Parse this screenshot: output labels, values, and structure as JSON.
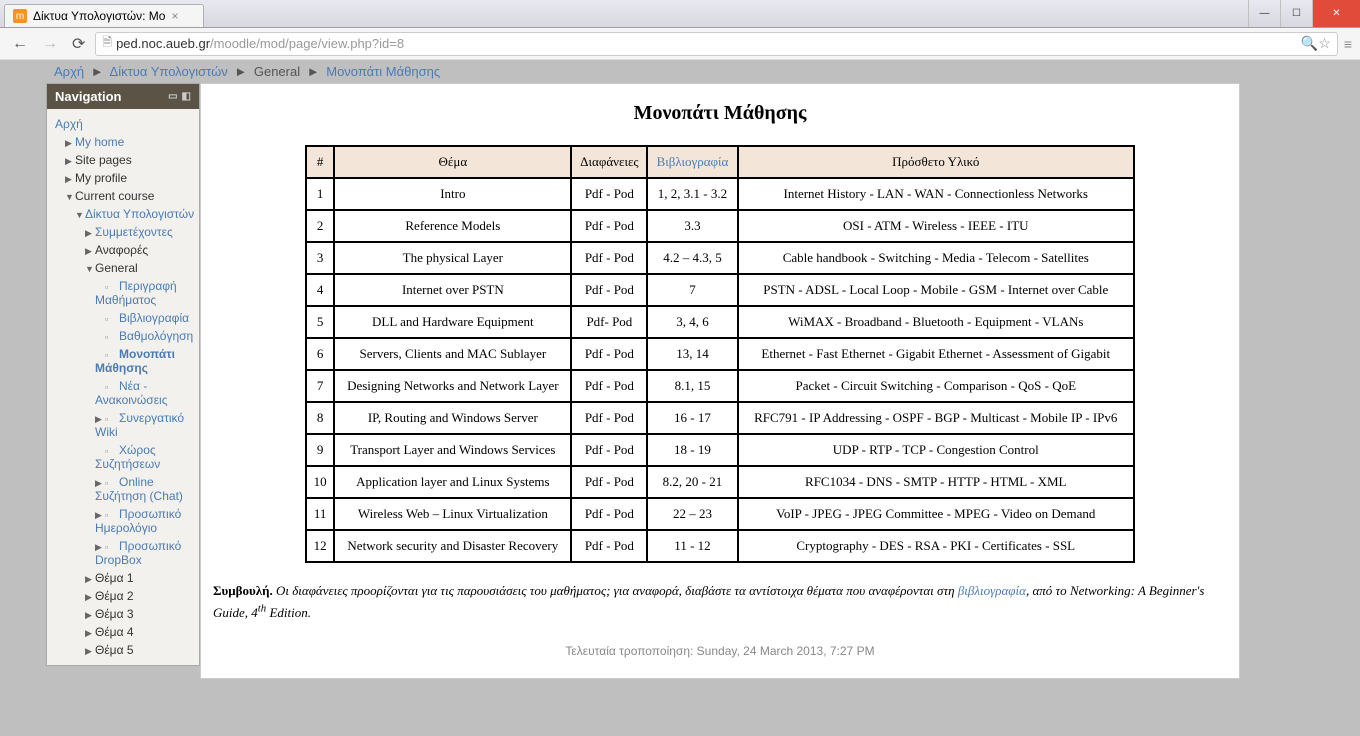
{
  "browser": {
    "tab_title": "Δίκτυα Υπολογιστών: Μο",
    "url_domain": "ped.noc.aueb.gr",
    "url_path": "/moodle/mod/page/view.php?id=8"
  },
  "breadcrumb": {
    "items": [
      "Αρχή",
      "Δίκτυα Υπολογιστών",
      "General",
      "Μονοπάτι Μάθησης"
    ]
  },
  "nav_block": {
    "title": "Navigation",
    "items": [
      {
        "label": "Αρχή",
        "link": true,
        "lvl": 1
      },
      {
        "label": "My home",
        "link": true,
        "lvl": 2,
        "caret": "closed"
      },
      {
        "label": "Site pages",
        "plain": true,
        "lvl": 2,
        "caret": "closed"
      },
      {
        "label": "My profile",
        "plain": true,
        "lvl": 2,
        "caret": "closed"
      },
      {
        "label": "Current course",
        "plain": true,
        "lvl": 2,
        "caret": "open"
      },
      {
        "label": "Δίκτυα Υπολογιστών",
        "link": true,
        "lvl": 3,
        "caret": "open"
      },
      {
        "label": "Συμμετέχοντες",
        "link": true,
        "lvl": 4,
        "caret": "closed"
      },
      {
        "label": "Αναφορές",
        "plain": true,
        "lvl": 4,
        "caret": "closed"
      },
      {
        "label": "General",
        "plain": true,
        "lvl": 4,
        "caret": "open"
      },
      {
        "label": "Περιγραφή Μαθήματος",
        "link": true,
        "lvl": 5,
        "icon": "page"
      },
      {
        "label": "Βιβλιογραφία",
        "link": true,
        "lvl": 5,
        "icon": "page"
      },
      {
        "label": "Βαθμολόγηση",
        "link": true,
        "lvl": 5,
        "icon": "page"
      },
      {
        "label": "Μονοπάτι Μάθησης",
        "link": true,
        "lvl": 5,
        "icon": "page",
        "current": true
      },
      {
        "label": "Νέα - Ανακοινώσεις",
        "link": true,
        "lvl": 5,
        "icon": "forum"
      },
      {
        "label": "Συνεργατικό Wiki",
        "link": true,
        "lvl": 5,
        "icon": "wiki",
        "caret": "closed"
      },
      {
        "label": "Χώρος Συζητήσεων",
        "link": true,
        "lvl": 5,
        "icon": "forum"
      },
      {
        "label": "Online Συζήτηση (Chat)",
        "link": true,
        "lvl": 5,
        "icon": "chat",
        "caret": "closed"
      },
      {
        "label": "Προσωπικό Ημερολόγιο",
        "link": true,
        "lvl": 5,
        "icon": "journal",
        "caret": "closed"
      },
      {
        "label": "Προσωπικό DropBox",
        "link": true,
        "lvl": 5,
        "icon": "folder",
        "caret": "closed"
      },
      {
        "label": "Θέμα 1",
        "plain": true,
        "lvl": 4,
        "caret": "closed"
      },
      {
        "label": "Θέμα 2",
        "plain": true,
        "lvl": 4,
        "caret": "closed"
      },
      {
        "label": "Θέμα 3",
        "plain": true,
        "lvl": 4,
        "caret": "closed"
      },
      {
        "label": "Θέμα 4",
        "plain": true,
        "lvl": 4,
        "caret": "closed"
      },
      {
        "label": "Θέμα 5",
        "plain": true,
        "lvl": 4,
        "caret": "closed"
      }
    ]
  },
  "content": {
    "title": "Μονοπάτι Μάθησης",
    "headers": [
      "#",
      "Θέμα",
      "Διαφάνειες",
      "Βιβλιογραφία",
      "Πρόσθετο Υλικό"
    ],
    "biblio_link": true,
    "rows": [
      [
        "1",
        "Intro",
        "Pdf - Pod",
        "1, 2, 3.1 - 3.2",
        "Internet History - LAN - WAN - Connectionless Networks"
      ],
      [
        "2",
        "Reference Models",
        "Pdf - Pod",
        "3.3",
        "OSI - ATM - Wireless - IEEE - ITU"
      ],
      [
        "3",
        "The physical Layer",
        "Pdf - Pod",
        "4.2 – 4.3, 5",
        "Cable handbook - Switching - Media - Telecom - Satellites"
      ],
      [
        "4",
        "Internet over PSTN",
        "Pdf - Pod",
        "7",
        "PSTN - ADSL - Local Loop - Mobile - GSM - Internet over Cable"
      ],
      [
        "5",
        "DLL and Hardware Equipment",
        "Pdf- Pod",
        "3, 4, 6",
        "WiMAX - Broadband - Bluetooth - Equipment - VLANs"
      ],
      [
        "6",
        "Servers, Clients and MAC Sublayer",
        "Pdf - Pod",
        "13, 14",
        "Ethernet - Fast Ethernet - Gigabit Ethernet - Assessment of Gigabit"
      ],
      [
        "7",
        "Designing Networks and Network Layer",
        "Pdf - Pod",
        "8.1, 15",
        "Packet - Circuit Switching - Comparison - QoS - QoE"
      ],
      [
        "8",
        "IP, Routing and Windows Server",
        "Pdf - Pod",
        "16 - 17",
        "RFC791 - IP Addressing - OSPF - BGP - Multicast - Mobile IP - IPv6"
      ],
      [
        "9",
        "Transport Layer and Windows Services",
        "Pdf - Pod",
        "18 - 19",
        "UDP - RTP - TCP - Congestion Control"
      ],
      [
        "10",
        "Application layer and Linux Systems",
        "Pdf - Pod",
        "8.2, 20 - 21",
        "RFC1034 - DNS - SMTP - HTTP - HTML - XML"
      ],
      [
        "11",
        "Wireless Web – Linux Virtualization",
        "Pdf - Pod",
        "22 – 23",
        "VoIP - JPEG - JPEG Committee - MPEG - Video on Demand"
      ],
      [
        "12",
        "Network security and Disaster Recovery",
        "Pdf - Pod",
        "11 - 12",
        "Cryptography - DES - RSA - PKI - Certificates - SSL"
      ]
    ],
    "tip_label": "Συμβουλή.",
    "tip_p1": " Οι διαφάνειες προορίζονται για τις παρουσιάσεις του μαθήματος; για αναφορά, διαβάστε τα αντίστοιχα θέματα που αναφέρονται στη ",
    "tip_link": "βιβλιογραφία",
    "tip_p2": ", από το ",
    "tip_book": "Networking: A Beginner's Guide, 4",
    "tip_ed": "th",
    "tip_p3": " Edition.",
    "last_mod": "Τελευταία τροποποίηση: Sunday, 24 March 2013, 7:27 PM"
  }
}
